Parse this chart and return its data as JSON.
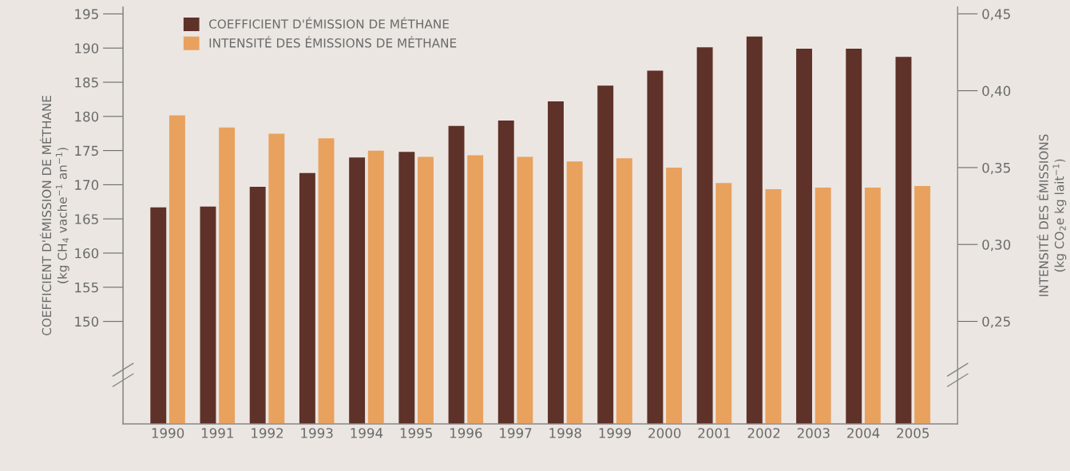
{
  "chart_data": {
    "type": "bar",
    "categories": [
      "1990",
      "1991",
      "1992",
      "1993",
      "1994",
      "1995",
      "1996",
      "1997",
      "1998",
      "1999",
      "2000",
      "2001",
      "2002",
      "2003",
      "2004",
      "2005"
    ],
    "ylabel": "COEFFICIENT D'ÉMISSION DE MÉTHANE\n(kg CH$_{4}$ vache$^{−1}$ an$^{−1}$)",
    "y2label": "INTENSITÉ DES ÉMISSIONS\n(kg CO$_{2}$e kg lait$^{−1}$)",
    "series": [
      {
        "name": "COEFFICIENT D'ÉMISSION DE MÉTHANE",
        "color": "#5e3129",
        "values": [
          166.7,
          166.8,
          169.7,
          171.7,
          174.0,
          174.8,
          178.6,
          179.4,
          182.2,
          184.5,
          186.7,
          190.1,
          191.7,
          189.9,
          189.9,
          188.7
        ]
      },
      {
        "name": "INTENSITÉ DES ÉMISSIONS DE MÉTHANE",
        "color": "#e9a15e",
        "axis": "y2",
        "values": [
          0.384,
          0.376,
          0.372,
          0.369,
          0.361,
          0.357,
          0.358,
          0.357,
          0.354,
          0.356,
          0.35,
          0.34,
          0.336,
          0.337,
          0.337,
          0.338
        ]
      }
    ],
    "ylim": [
      135,
      196
    ],
    "yticks": [
      150,
      155,
      160,
      165,
      170,
      175,
      180,
      185,
      190,
      195
    ],
    "y2lim": [
      0.1833,
      0.4544
    ],
    "y2ticks": [
      {
        "value": 0.25,
        "label": "0,25"
      },
      {
        "value": 0.3,
        "label": "0,30"
      },
      {
        "value": 0.35,
        "label": "0,35"
      },
      {
        "value": 0.4,
        "label": "0,40"
      },
      {
        "value": 0.45,
        "label": "0,45"
      }
    ],
    "grid": false,
    "legend": "top left"
  }
}
